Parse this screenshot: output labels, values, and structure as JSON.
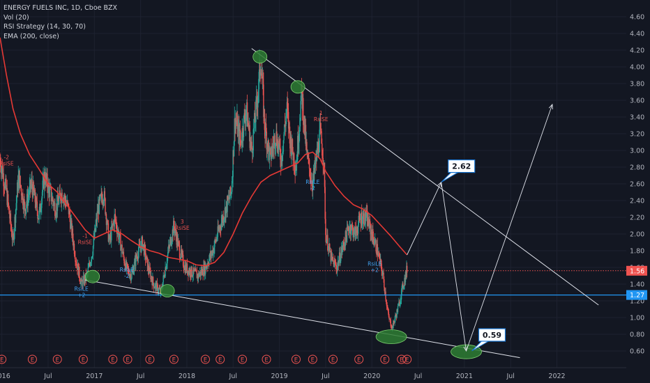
{
  "legend": {
    "symbol": "ENERGY FUELS INC, 1D, Cboe BZX",
    "indicators": [
      "Vol (20)",
      "RSI Strategy (14, 30, 70)",
      "EMA (200, close)"
    ]
  },
  "colors": {
    "background": "#131722",
    "grid": "#1e2230",
    "price_line": "#ef5350",
    "support_line": "#2196f3",
    "ema": "#e53935",
    "drawing": "#e0e3eb",
    "ellipse": "#2e7d32",
    "candle_up": "#26a69a",
    "candle_down": "#ef5350",
    "signal_rise": "#ef5350",
    "signal_rsile": "#42a5f5"
  },
  "chart_data": {
    "type": "candlestick",
    "y_axis": {
      "min": 0.5,
      "max": 4.7,
      "ticks": [
        "4.60",
        "4.40",
        "4.20",
        "4.00",
        "3.80",
        "3.60",
        "3.40",
        "3.20",
        "3.00",
        "2.80",
        "2.60",
        "2.40",
        "2.20",
        "2.00",
        "1.80",
        "1.60",
        "1.40",
        "1.20",
        "1.00",
        "0.80",
        "0.60"
      ]
    },
    "x_axis": {
      "start": 2015.98,
      "end": 2022.75,
      "labels": [
        {
          "t": 2016.0,
          "label": "2016"
        },
        {
          "t": 2016.5,
          "label": "Jul"
        },
        {
          "t": 2017.0,
          "label": "2017"
        },
        {
          "t": 2017.5,
          "label": "Jul"
        },
        {
          "t": 2018.0,
          "label": "2018"
        },
        {
          "t": 2018.5,
          "label": "Jul"
        },
        {
          "t": 2019.0,
          "label": "2019"
        },
        {
          "t": 2019.5,
          "label": "Jul"
        },
        {
          "t": 2020.0,
          "label": "2020"
        },
        {
          "t": 2020.5,
          "label": "Jul"
        },
        {
          "t": 2021.0,
          "label": "2021"
        },
        {
          "t": 2021.5,
          "label": "Jul"
        },
        {
          "t": 2022.0,
          "label": "2022"
        }
      ]
    },
    "price_path": [
      [
        2015.98,
        2.9
      ],
      [
        2016.05,
        2.5
      ],
      [
        2016.12,
        1.9
      ],
      [
        2016.18,
        2.7
      ],
      [
        2016.25,
        2.3
      ],
      [
        2016.32,
        2.6
      ],
      [
        2016.4,
        2.2
      ],
      [
        2016.46,
        2.7
      ],
      [
        2016.52,
        2.5
      ],
      [
        2016.58,
        2.3
      ],
      [
        2016.65,
        2.5
      ],
      [
        2016.72,
        2.3
      ],
      [
        2016.8,
        1.7
      ],
      [
        2016.86,
        1.4
      ],
      [
        2016.92,
        1.5
      ],
      [
        2016.98,
        1.8
      ],
      [
        2017.04,
        2.3
      ],
      [
        2017.1,
        2.5
      ],
      [
        2017.16,
        1.9
      ],
      [
        2017.22,
        2.2
      ],
      [
        2017.28,
        1.9
      ],
      [
        2017.34,
        1.6
      ],
      [
        2017.4,
        1.5
      ],
      [
        2017.46,
        1.75
      ],
      [
        2017.52,
        1.9
      ],
      [
        2017.58,
        1.6
      ],
      [
        2017.64,
        1.4
      ],
      [
        2017.72,
        1.3
      ],
      [
        2017.8,
        1.8
      ],
      [
        2017.86,
        2.1
      ],
      [
        2017.92,
        1.8
      ],
      [
        2017.98,
        1.6
      ],
      [
        2018.04,
        1.55
      ],
      [
        2018.12,
        1.5
      ],
      [
        2018.2,
        1.6
      ],
      [
        2018.28,
        1.8
      ],
      [
        2018.36,
        2.1
      ],
      [
        2018.42,
        2.3
      ],
      [
        2018.48,
        2.5
      ],
      [
        2018.52,
        3.4
      ],
      [
        2018.58,
        3.1
      ],
      [
        2018.64,
        3.5
      ],
      [
        2018.7,
        3.0
      ],
      [
        2018.76,
        3.6
      ],
      [
        2018.8,
        4.1
      ],
      [
        2018.84,
        3.3
      ],
      [
        2018.9,
        2.9
      ],
      [
        2018.96,
        3.2
      ],
      [
        2019.02,
        2.9
      ],
      [
        2019.08,
        3.5
      ],
      [
        2019.12,
        3.1
      ],
      [
        2019.18,
        2.8
      ],
      [
        2019.24,
        3.7
      ],
      [
        2019.3,
        2.9
      ],
      [
        2019.36,
        2.6
      ],
      [
        2019.4,
        2.9
      ],
      [
        2019.44,
        3.2
      ],
      [
        2019.48,
        2.9
      ],
      [
        2019.5,
        2.0
      ],
      [
        2019.56,
        1.7
      ],
      [
        2019.62,
        1.6
      ],
      [
        2019.7,
        1.9
      ],
      [
        2019.76,
        2.1
      ],
      [
        2019.82,
        2.0
      ],
      [
        2019.88,
        2.2
      ],
      [
        2019.94,
        2.2
      ],
      [
        2020.0,
        2.0
      ],
      [
        2020.06,
        1.8
      ],
      [
        2020.12,
        1.5
      ],
      [
        2020.18,
        1.0
      ],
      [
        2020.22,
        0.88
      ],
      [
        2020.28,
        1.1
      ],
      [
        2020.34,
        1.4
      ],
      [
        2020.38,
        1.58
      ]
    ],
    "ema_path": [
      [
        2015.98,
        4.35
      ],
      [
        2016.05,
        3.9
      ],
      [
        2016.12,
        3.5
      ],
      [
        2016.2,
        3.2
      ],
      [
        2016.3,
        2.95
      ],
      [
        2016.4,
        2.78
      ],
      [
        2016.5,
        2.6
      ],
      [
        2016.6,
        2.5
      ],
      [
        2016.7,
        2.35
      ],
      [
        2016.8,
        2.2
      ],
      [
        2016.9,
        2.05
      ],
      [
        2017.0,
        1.95
      ],
      [
        2017.1,
        2.0
      ],
      [
        2017.2,
        2.05
      ],
      [
        2017.3,
        2.0
      ],
      [
        2017.4,
        1.92
      ],
      [
        2017.5,
        1.85
      ],
      [
        2017.6,
        1.8
      ],
      [
        2017.7,
        1.77
      ],
      [
        2017.8,
        1.72
      ],
      [
        2017.9,
        1.7
      ],
      [
        2018.0,
        1.68
      ],
      [
        2018.1,
        1.63
      ],
      [
        2018.2,
        1.62
      ],
      [
        2018.3,
        1.66
      ],
      [
        2018.4,
        1.78
      ],
      [
        2018.5,
        2.0
      ],
      [
        2018.6,
        2.25
      ],
      [
        2018.7,
        2.45
      ],
      [
        2018.8,
        2.62
      ],
      [
        2018.9,
        2.7
      ],
      [
        2019.0,
        2.75
      ],
      [
        2019.1,
        2.8
      ],
      [
        2019.2,
        2.85
      ],
      [
        2019.28,
        2.95
      ],
      [
        2019.36,
        2.98
      ],
      [
        2019.44,
        2.9
      ],
      [
        2019.5,
        2.75
      ],
      [
        2019.6,
        2.58
      ],
      [
        2019.7,
        2.45
      ],
      [
        2019.8,
        2.35
      ],
      [
        2019.9,
        2.3
      ],
      [
        2020.0,
        2.22
      ],
      [
        2020.1,
        2.1
      ],
      [
        2020.2,
        1.98
      ],
      [
        2020.3,
        1.85
      ],
      [
        2020.38,
        1.75
      ]
    ],
    "last_price": {
      "value": 1.56,
      "label": "1.56"
    },
    "support_level": {
      "value": 1.27,
      "label": "1.27"
    },
    "trendlines": [
      {
        "from": [
          2018.7,
          4.22
        ],
        "to": [
          2022.45,
          1.15
        ]
      },
      {
        "from": [
          2016.9,
          1.45
        ],
        "to": [
          2021.6,
          0.52
        ]
      }
    ],
    "projection_arrows": [
      {
        "from": [
          2020.38,
          1.75
        ],
        "to": [
          2020.75,
          2.62
        ]
      },
      {
        "from": [
          2020.75,
          2.62
        ],
        "to": [
          2021.02,
          0.6
        ]
      },
      {
        "from": [
          2021.02,
          0.6
        ],
        "to": [
          2021.95,
          3.55
        ]
      }
    ],
    "callouts": [
      {
        "anchor": [
          2020.75,
          2.62
        ],
        "label": "2.62"
      },
      {
        "anchor": [
          2021.08,
          0.6
        ],
        "label": "0.59"
      }
    ],
    "ellipses": [
      {
        "t": 2018.79,
        "p": 4.12
      },
      {
        "t": 2019.2,
        "p": 3.76
      },
      {
        "t": 2016.98,
        "p": 1.49
      },
      {
        "t": 2017.79,
        "p": 1.32
      },
      {
        "t": 2020.21,
        "p": 0.77
      },
      {
        "t": 2021.02,
        "p": 0.59
      }
    ],
    "signals": [
      {
        "t": 2016.05,
        "p": 2.82,
        "text": "RsiSE",
        "sub": "-2",
        "kind": "rise"
      },
      {
        "t": 2016.9,
        "p": 1.88,
        "text": "RsiSE",
        "sub": "-1",
        "kind": "rise"
      },
      {
        "t": 2016.86,
        "p": 1.32,
        "text": "RsiLE",
        "sub": "+2",
        "kind": "rsile"
      },
      {
        "t": 2017.35,
        "p": 1.55,
        "text": "RsiLE",
        "sub": "-2",
        "kind": "rsile"
      },
      {
        "t": 2017.95,
        "p": 2.05,
        "text": "RsiSE",
        "sub": "3",
        "kind": "rise"
      },
      {
        "t": 2019.45,
        "p": 3.35,
        "text": "RsiSE",
        "sub": "1",
        "kind": "rise"
      },
      {
        "t": 2019.36,
        "p": 2.6,
        "text": "RsiLE",
        "sub": "-2",
        "kind": "rsile"
      },
      {
        "t": 2020.03,
        "p": 1.62,
        "text": "RsiLE",
        "sub": "+2",
        "kind": "rsile"
      }
    ],
    "earnings_markers": [
      2016.0,
      2016.33,
      2016.6,
      2016.88,
      2017.2,
      2017.36,
      2017.6,
      2017.86,
      2018.2,
      2018.36,
      2018.6,
      2018.86,
      2019.18,
      2019.36,
      2019.58,
      2019.86,
      2020.14,
      2020.32,
      2020.38
    ]
  }
}
